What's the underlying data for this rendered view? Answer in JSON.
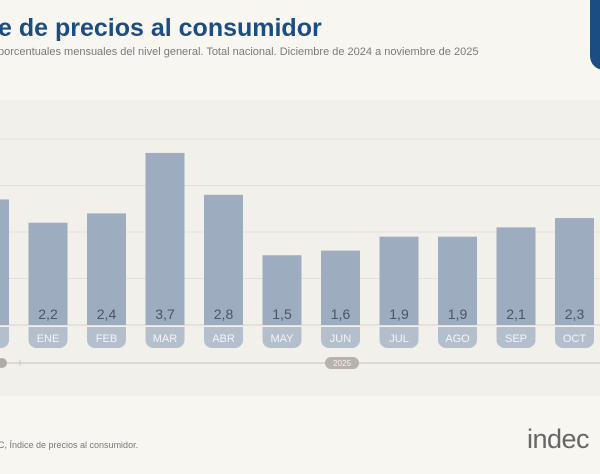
{
  "header": {
    "title": "e de precios al consumidor",
    "subtitle": "porcentuales mensuales del nivel general. Total nacional. Diciembre de 2024 a noviembre de 2025"
  },
  "footer": {
    "source": "C, Índice de precios al consumidor.",
    "logo": "indec"
  },
  "colors": {
    "bar": "#9eacbf",
    "label_pill": "#b3bfcd",
    "title": "#1b4c82",
    "value_text": "#4a5568"
  },
  "chart_data": {
    "type": "bar",
    "title": "",
    "xlabel": "",
    "ylabel": "",
    "ylim": [
      0,
      4
    ],
    "grid": true,
    "categories": [
      "",
      "ENE",
      "FEB",
      "MAR",
      "ABR",
      "MAY",
      "JUN",
      "JUL",
      "AGO",
      "SEP",
      "OCT"
    ],
    "values": [
      2.7,
      2.2,
      2.4,
      3.7,
      2.8,
      1.5,
      1.6,
      1.9,
      1.9,
      2.1,
      2.3
    ],
    "value_labels": [
      "",
      "2,2",
      "2,4",
      "3,7",
      "2,8",
      "1,5",
      "1,6",
      "1,9",
      "1,9",
      "2,1",
      "2,3"
    ],
    "year_label": "2025"
  }
}
